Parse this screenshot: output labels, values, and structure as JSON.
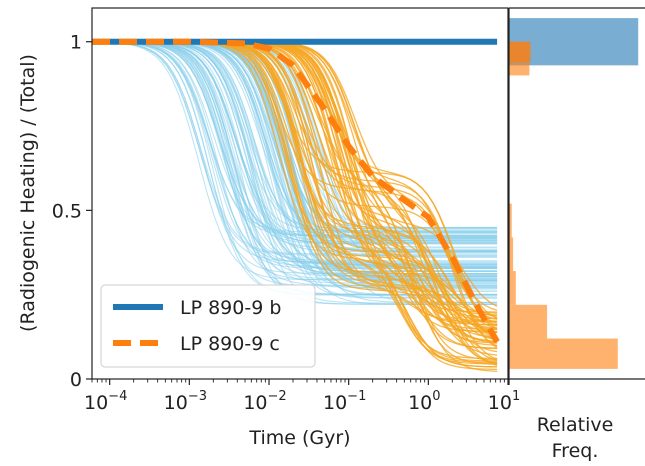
{
  "chart_data": [
    {
      "type": "line",
      "xlabel": "Time (Gyr)",
      "ylabel": "(Radiogenic Heating) / (Total)",
      "x_scale": "log",
      "xlim": [
        6e-05,
        10
      ],
      "ylim": [
        0,
        1.1
      ],
      "x_ticks": [
        {
          "value": 0.0001,
          "base": "10",
          "exp": "−4"
        },
        {
          "value": 0.001,
          "base": "10",
          "exp": "−3"
        },
        {
          "value": 0.01,
          "base": "10",
          "exp": "−2"
        },
        {
          "value": 0.1,
          "base": "10",
          "exp": "−1"
        },
        {
          "value": 1,
          "base": "10",
          "exp": "0"
        },
        {
          "value": 10,
          "base": "10",
          "exp": "1"
        }
      ],
      "y_ticks": [
        {
          "value": 0,
          "label": "0"
        },
        {
          "value": 0.5,
          "label": "0.5"
        },
        {
          "value": 1,
          "label": "1"
        }
      ],
      "grid": false,
      "legend_position": "lower-left",
      "series": [
        {
          "name": "LP 890-9 b",
          "color": "#1f77b4",
          "style": "solid",
          "x": [
            6e-05,
            0.0001,
            0.001,
            0.01,
            0.1,
            1,
            7.3
          ],
          "y": [
            1.0,
            1.0,
            1.0,
            1.0,
            1.0,
            1.0,
            1.0
          ]
        },
        {
          "name": "LP 890-9 c",
          "color": "#ff7f0e",
          "style": "dashed",
          "x": [
            6e-05,
            0.0001,
            0.001,
            0.005,
            0.01,
            0.02,
            0.05,
            0.1,
            0.2,
            0.3,
            0.5,
            1,
            2,
            4,
            7.3
          ],
          "y": [
            1.0,
            1.0,
            1.0,
            0.995,
            0.98,
            0.93,
            0.8,
            0.69,
            0.6,
            0.57,
            0.53,
            0.48,
            0.36,
            0.22,
            0.11
          ]
        }
      ],
      "ensemble_b": {
        "color": "#87ceeb",
        "count": 120,
        "tau_log10_range": [
          -2.9,
          -1.3
        ],
        "floor_range": [
          0.22,
          0.45
        ]
      },
      "ensemble_c": {
        "color": "#f5a623",
        "count": 60,
        "tau1_log10_range": [
          -1.9,
          -0.9
        ],
        "plateau_range": [
          0.26,
          0.62
        ],
        "tau2_log10_range": [
          -0.4,
          0.5
        ],
        "floor_range": [
          0.02,
          0.2
        ]
      }
    },
    {
      "type": "histogram",
      "xlabel": "Relative\nFreq.",
      "x_tick_label": "",
      "ylim": [
        0,
        1.1
      ],
      "series": [
        {
          "name": "LP 890-9 b",
          "color": "#1f77b4",
          "bins": [
            {
              "lo": 0.93,
              "hi": 1.07,
              "freq": 0.95
            }
          ]
        },
        {
          "name": "LP 890-9 c",
          "color": "#ff7f0e",
          "bins": [
            {
              "lo": 0.03,
              "hi": 0.12,
              "freq": 0.8
            },
            {
              "lo": 0.12,
              "hi": 0.22,
              "freq": 0.28
            },
            {
              "lo": 0.22,
              "hi": 0.32,
              "freq": 0.05
            },
            {
              "lo": 0.32,
              "hi": 0.42,
              "freq": 0.03
            },
            {
              "lo": 0.42,
              "hi": 0.52,
              "freq": 0.02
            },
            {
              "lo": 0.9,
              "hi": 1.0,
              "freq": 0.15
            },
            {
              "lo": 1.0,
              "hi": 1.0,
              "freq": 0.0
            }
          ],
          "extra": [
            {
              "lo": 0.94,
              "hi": 1.0,
              "freq": 0.16
            }
          ]
        }
      ]
    }
  ]
}
